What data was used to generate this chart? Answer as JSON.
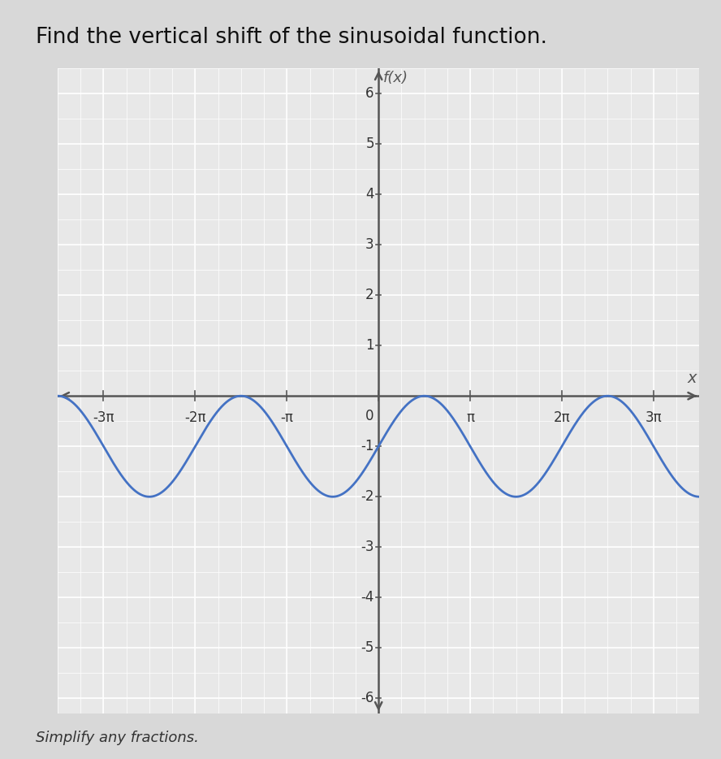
{
  "title": "Find the vertical shift of the sinusoidal function.",
  "subtitle": "Simplify any fractions.",
  "ylabel": "f(x)",
  "xlabel": "x",
  "x_ticks_pi": [
    -3,
    -2,
    -1,
    0,
    1,
    2,
    3
  ],
  "x_tick_labels": [
    "-3π",
    "-2π",
    "-π",
    "0",
    "π",
    "2π",
    "3π"
  ],
  "y_ticks": [
    -6,
    -5,
    -4,
    -3,
    -2,
    -1,
    1,
    2,
    3,
    4,
    5,
    6
  ],
  "ylim": [
    -6.3,
    6.5
  ],
  "xlim_pi": [
    -3.5,
    3.5
  ],
  "amplitude": 1,
  "vertical_shift": -1,
  "curve_color": "#4472C4",
  "curve_linewidth": 2.0,
  "bg_color": "#e0e0e0",
  "grid_minor_color": "#c8c8c8",
  "grid_major_color": "#b0b0b0",
  "axis_color": "#555555",
  "title_fontsize": 19,
  "label_fontsize": 13,
  "tick_fontsize": 12
}
